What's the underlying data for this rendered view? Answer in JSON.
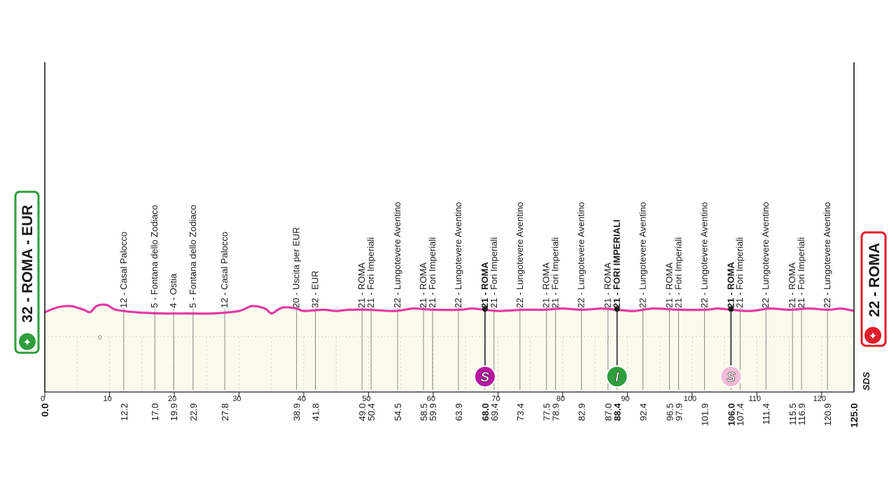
{
  "chart_data": {
    "type": "area",
    "xlim": [
      0,
      125
    ],
    "x_ticks": [
      0,
      10,
      20,
      30,
      40,
      50,
      60,
      70,
      80,
      90,
      100,
      110,
      120
    ],
    "elevation_label": "0",
    "start": {
      "label": "32 - ROMA - EUR",
      "km": "0.0",
      "icon": "start-bike-icon",
      "color": "#2e9e3c"
    },
    "finish": {
      "label": "22 - ROMA",
      "km": "125.0",
      "icon": "finish-bike-icon",
      "color": "#e11d2a"
    },
    "profile_color": "#e23ba4",
    "fill_color": "#fbfbed",
    "profile": [
      [
        0,
        20
      ],
      [
        2,
        24
      ],
      [
        4,
        25
      ],
      [
        6,
        22
      ],
      [
        7,
        20
      ],
      [
        8,
        25
      ],
      [
        9.5,
        26
      ],
      [
        11,
        22
      ],
      [
        14,
        20
      ],
      [
        18,
        19
      ],
      [
        22,
        19
      ],
      [
        26,
        19
      ],
      [
        30,
        21
      ],
      [
        32,
        25
      ],
      [
        34,
        23
      ],
      [
        35,
        19
      ],
      [
        36,
        22
      ],
      [
        37,
        24
      ],
      [
        38.9,
        23
      ],
      [
        40,
        21
      ],
      [
        43,
        22
      ],
      [
        45,
        21
      ],
      [
        47,
        22
      ],
      [
        50,
        22
      ],
      [
        54,
        21
      ],
      [
        57,
        23
      ],
      [
        60,
        22
      ],
      [
        64,
        22
      ],
      [
        66,
        23
      ],
      [
        68,
        22
      ],
      [
        70,
        21
      ],
      [
        74,
        22
      ],
      [
        77,
        22
      ],
      [
        80,
        23
      ],
      [
        83,
        22
      ],
      [
        86,
        23
      ],
      [
        88.4,
        22
      ],
      [
        91,
        21
      ],
      [
        94,
        23
      ],
      [
        98,
        22
      ],
      [
        102,
        22
      ],
      [
        104,
        23
      ],
      [
        106,
        22
      ],
      [
        109,
        21
      ],
      [
        112,
        23
      ],
      [
        115,
        22
      ],
      [
        118,
        23
      ],
      [
        121,
        22
      ],
      [
        123,
        23
      ],
      [
        125,
        21
      ]
    ],
    "waypoints": [
      {
        "km": "12.2",
        "name": "12 - Casal Palocco"
      },
      {
        "km": "17.0",
        "name": "5 - Fontana dello Zodiaco"
      },
      {
        "km": "19.9",
        "name": "4 - Ostia"
      },
      {
        "km": "22.9",
        "name": "5 - Fontana dello Zodiaco"
      },
      {
        "km": "27.8",
        "name": "12 - Casal Palocco"
      },
      {
        "km": "38.9",
        "name": "20 - Uscita per EUR"
      },
      {
        "km": "41.8",
        "name": "32 - EUR"
      },
      {
        "km": "49.0",
        "name": "21 - ROMA"
      },
      {
        "km": "50.4",
        "name": "21 - Fori Imperiali"
      },
      {
        "km": "54.5",
        "name": "22 - Lungotevere Aventino"
      },
      {
        "km": "58.5",
        "name": "21 - ROMA"
      },
      {
        "km": "59.9",
        "name": "21 - Fori Imperiali"
      },
      {
        "km": "63.9",
        "name": "22 - Lungotevere Aventino"
      },
      {
        "km": "68.0",
        "name": "21 - ROMA",
        "bold": true
      },
      {
        "km": "69.4",
        "name": "21 - Fori Imperiali"
      },
      {
        "km": "73.4",
        "name": "22 - Lungotevere Aventino"
      },
      {
        "km": "77.5",
        "name": "21 - ROMA"
      },
      {
        "km": "78.9",
        "name": "21 - Fori Imperiali"
      },
      {
        "km": "82.9",
        "name": "22 - Lungotevere Aventino"
      },
      {
        "km": "87.0",
        "name": "21 - ROMA"
      },
      {
        "km": "88.4",
        "name": "21 - FORI IMPERIALI",
        "bold": true
      },
      {
        "km": "92.4",
        "name": "22 - Lungotevere Aventino"
      },
      {
        "km": "96.5",
        "name": "21 - ROMA"
      },
      {
        "km": "97.9",
        "name": "21 - Fori Imperiali"
      },
      {
        "km": "101.9",
        "name": "22 - Lungotevere Aventino"
      },
      {
        "km": "106.0",
        "name": "21 - ROMA",
        "bold": true
      },
      {
        "km": "107.4",
        "name": "21 - Fori Imperiali"
      },
      {
        "km": "111.4",
        "name": "22 - Lungotevere Aventino"
      },
      {
        "km": "115.5",
        "name": "21 - ROMA"
      },
      {
        "km": "116.9",
        "name": "21 - Fori Imperiali"
      },
      {
        "km": "120.9",
        "name": "22 - Lungotevere Aventino"
      }
    ],
    "markers": [
      {
        "km": 68.0,
        "letter": "S",
        "type": "sprint",
        "color": "#b5179e"
      },
      {
        "km": 88.4,
        "letter": "I",
        "type": "intermediate",
        "color": "#2e9e3c"
      },
      {
        "km": 106.0,
        "letter": "S",
        "type": "sprint",
        "color": "#f2bcd6"
      }
    ],
    "logo_text": "SDS"
  }
}
